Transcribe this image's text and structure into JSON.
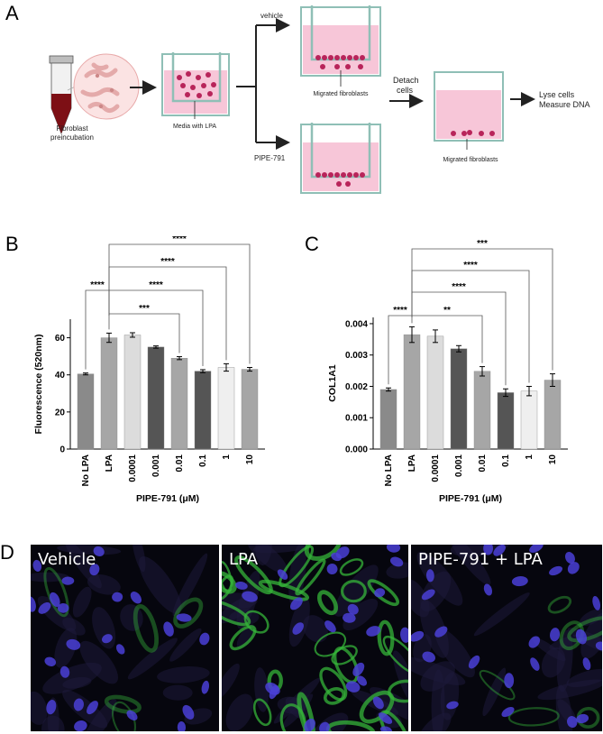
{
  "panels": {
    "a": "A",
    "b": "B",
    "c": "C",
    "d": "D"
  },
  "schematic": {
    "fibroblast_label_line1": "Fibroblast",
    "fibroblast_label_line2": "preincubation",
    "media_label": "Media with LPA",
    "vehicle_label": "vehicle",
    "pipe_label": "PIPE-791",
    "migrated_label_top": "Migrated fibroblasts",
    "detach_line1": "Detach",
    "detach_line2": "cells",
    "migrated_label_right": "Migrated fibroblasts",
    "lyse_line1": "Lyse cells",
    "lyse_line2": "Measure DNA"
  },
  "chart_data": [
    {
      "type": "bar",
      "categories": [
        "No LPA",
        "LPA",
        "0.0001",
        "0.001",
        "0.01",
        "0.1",
        "1",
        "10"
      ],
      "values": [
        40.5,
        60,
        61.5,
        55,
        49,
        42,
        44,
        43
      ],
      "errors": [
        0.5,
        2.5,
        1.2,
        0.6,
        0.8,
        0.8,
        2,
        1
      ],
      "colors": [
        "#8a8a8a",
        "#a6a6a6",
        "#dcdcdc",
        "#555555",
        "#a6a6a6",
        "#555555",
        "#efefef",
        "#a6a6a6"
      ],
      "xlabel": "PIPE-791 (μM)",
      "ylabel": "Fluorescence (520nm)",
      "ylim": [
        0,
        70
      ],
      "yticks": [
        "0",
        "20",
        "40",
        "60"
      ],
      "significance": [
        {
          "label": "****",
          "from": "No LPA",
          "to": "LPA"
        },
        {
          "label": "***",
          "from": "LPA",
          "to": "0.01"
        },
        {
          "label": "****",
          "from": "LPA",
          "to": "0.1"
        },
        {
          "label": "****",
          "from": "LPA",
          "to": "1"
        },
        {
          "label": "****",
          "from": "LPA",
          "to": "10"
        }
      ]
    },
    {
      "type": "bar",
      "categories": [
        "No LPA",
        "LPA",
        "0.0001",
        "0.001",
        "0.01",
        "0.1",
        "1",
        "10"
      ],
      "values": [
        0.0019,
        0.00365,
        0.0036,
        0.0032,
        0.00248,
        0.0018,
        0.00185,
        0.0022
      ],
      "errors": [
        5e-05,
        0.00025,
        0.0002,
        0.0001,
        0.00015,
        0.00012,
        0.00015,
        0.0002
      ],
      "colors": [
        "#8a8a8a",
        "#a6a6a6",
        "#dcdcdc",
        "#555555",
        "#a6a6a6",
        "#555555",
        "#efefef",
        "#a6a6a6"
      ],
      "xlabel": "PIPE-791 (μM)",
      "ylabel": "COL1A1",
      "ylim": [
        0,
        0.0042
      ],
      "yticks": [
        "0.000",
        "0.001",
        "0.002",
        "0.003",
        "0.004"
      ],
      "significance": [
        {
          "label": "****",
          "from": "No LPA",
          "to": "LPA"
        },
        {
          "label": "**",
          "from": "LPA",
          "to": "0.01"
        },
        {
          "label": "****",
          "from": "LPA",
          "to": "0.1"
        },
        {
          "label": "****",
          "from": "LPA",
          "to": "1"
        },
        {
          "label": "***",
          "from": "LPA",
          "to": "10"
        }
      ]
    }
  ],
  "microscopy": {
    "panels": [
      "Vehicle",
      "LPA",
      "PIPE-791 + LPA"
    ],
    "colors": {
      "background": "#06060e",
      "nucleus": "#4a3fd6",
      "actin": "#36b43a"
    }
  }
}
